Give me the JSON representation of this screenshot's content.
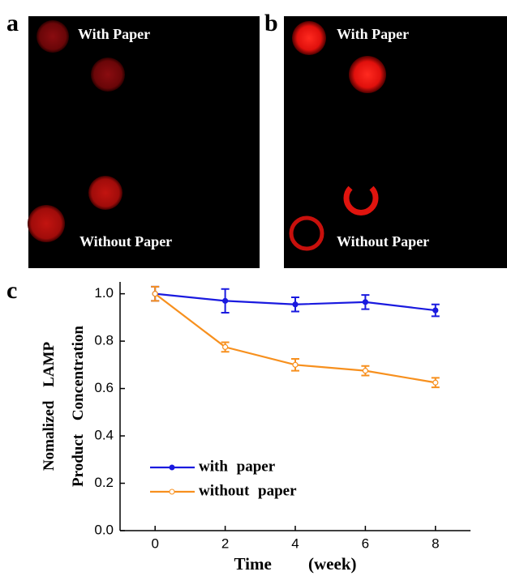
{
  "panels": {
    "a": {
      "label": "a",
      "top_text": "With Paper",
      "bottom_text": "Without Paper"
    },
    "b": {
      "label": "b",
      "top_text": "With Paper",
      "bottom_text": "Without Paper"
    }
  },
  "chart_data": {
    "type": "line",
    "label": "c",
    "xlabel": "Time (week)",
    "ylabel": [
      "Nomalized LAMP",
      "Product Concentration"
    ],
    "x": [
      0,
      2,
      4,
      6,
      8
    ],
    "series": [
      {
        "name": "with paper",
        "color": "#1a1adf",
        "marker": "filled",
        "values": [
          1.0,
          0.97,
          0.955,
          0.965,
          0.93
        ],
        "errors": [
          0.03,
          0.05,
          0.03,
          0.03,
          0.025
        ]
      },
      {
        "name": "without paper",
        "color": "#f7901e",
        "marker": "open",
        "values": [
          1.0,
          0.775,
          0.7,
          0.675,
          0.625
        ],
        "errors": [
          0.03,
          0.02,
          0.025,
          0.02,
          0.02
        ]
      }
    ],
    "xlim": [
      -1,
      9
    ],
    "xticks": [
      0,
      2,
      4,
      6,
      8
    ],
    "ylim": [
      0,
      1.05
    ],
    "yticks": [
      {
        "value": 0,
        "label": "0.0"
      },
      {
        "value": 0.2,
        "label": "0.2"
      },
      {
        "value": 0.4,
        "label": "0.4"
      },
      {
        "value": 0.6,
        "label": "0.6"
      },
      {
        "value": 0.8,
        "label": "0.8"
      },
      {
        "value": 1,
        "label": "1.0"
      }
    ],
    "legend": "lower left"
  }
}
